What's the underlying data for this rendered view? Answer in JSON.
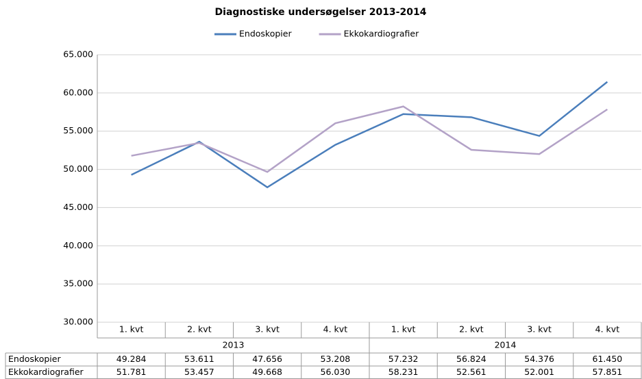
{
  "chart_data": {
    "type": "line",
    "title": "Diagnostiske undersøgelser 2013-2014",
    "categories": [
      "1. kvt",
      "2. kvt",
      "3. kvt",
      "4. kvt",
      "1. kvt",
      "2. kvt",
      "3. kvt",
      "4. kvt"
    ],
    "category_groups": [
      "2013",
      "2014"
    ],
    "series": [
      {
        "name": "Endoskopier",
        "color": "#4a7ebb",
        "values": [
          49284,
          53611,
          47656,
          53208,
          57232,
          56824,
          54376,
          61450
        ],
        "value_labels": [
          "49.284",
          "53.611",
          "47.656",
          "53.208",
          "57.232",
          "56.824",
          "54.376",
          "61.450"
        ]
      },
      {
        "name": "Ekkokardiografier",
        "color": "#b3a2c7",
        "values": [
          51781,
          53457,
          49668,
          56030,
          58231,
          52561,
          52001,
          57851
        ],
        "value_labels": [
          "51.781",
          "53.457",
          "49.668",
          "56.030",
          "58.231",
          "52.561",
          "52.001",
          "57.851"
        ]
      }
    ],
    "ylim": [
      30000,
      65000
    ],
    "yticks": [
      {
        "value": 30000,
        "label": "30.000"
      },
      {
        "value": 35000,
        "label": "35.000"
      },
      {
        "value": 40000,
        "label": "40.000"
      },
      {
        "value": 45000,
        "label": "45.000"
      },
      {
        "value": 50000,
        "label": "50.000"
      },
      {
        "value": 55000,
        "label": "55.000"
      },
      {
        "value": 60000,
        "label": "60.000"
      },
      {
        "value": 65000,
        "label": "65.000"
      }
    ],
    "grid": true,
    "legend": "top"
  }
}
